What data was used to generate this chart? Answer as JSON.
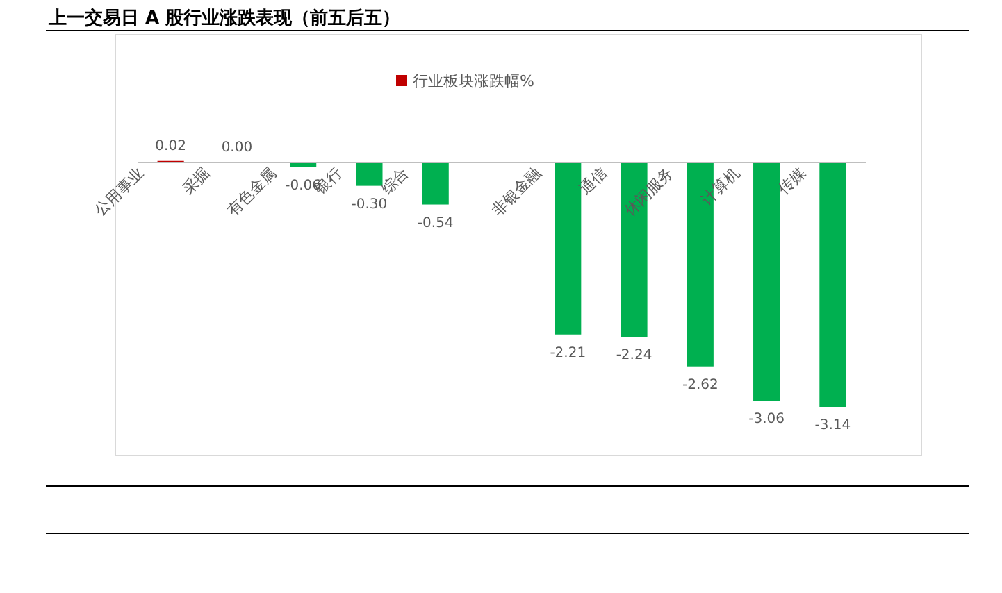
{
  "chart_data": {
    "type": "bar",
    "title": "上一交易日 A 股行业涨跌表现（前五后五）",
    "categories": [
      "公用事业",
      "采掘",
      "有色金属",
      "银行",
      "综合",
      null,
      "非银金融",
      "通信",
      "休闲服务",
      "计算机",
      "传媒"
    ],
    "series": [
      {
        "name": "行业板块涨跌幅%",
        "color": "#c00000",
        "colors": [
          "#c00000",
          "#c00000",
          "#00b050",
          "#00b050",
          "#00b050",
          null,
          "#00b050",
          "#00b050",
          "#00b050",
          "#00b050",
          "#00b050"
        ],
        "values": [
          0.02,
          0.0,
          -0.06,
          -0.3,
          -0.54,
          null,
          -2.21,
          -2.24,
          -2.62,
          -3.06,
          -3.14
        ],
        "value_labels": [
          "0.02",
          "0.00",
          "-0.06",
          "-0.30",
          "-0.54",
          null,
          "-2.21",
          "-2.24",
          "-2.62",
          "-3.06",
          "-3.14"
        ]
      }
    ],
    "legend": "top"
  }
}
